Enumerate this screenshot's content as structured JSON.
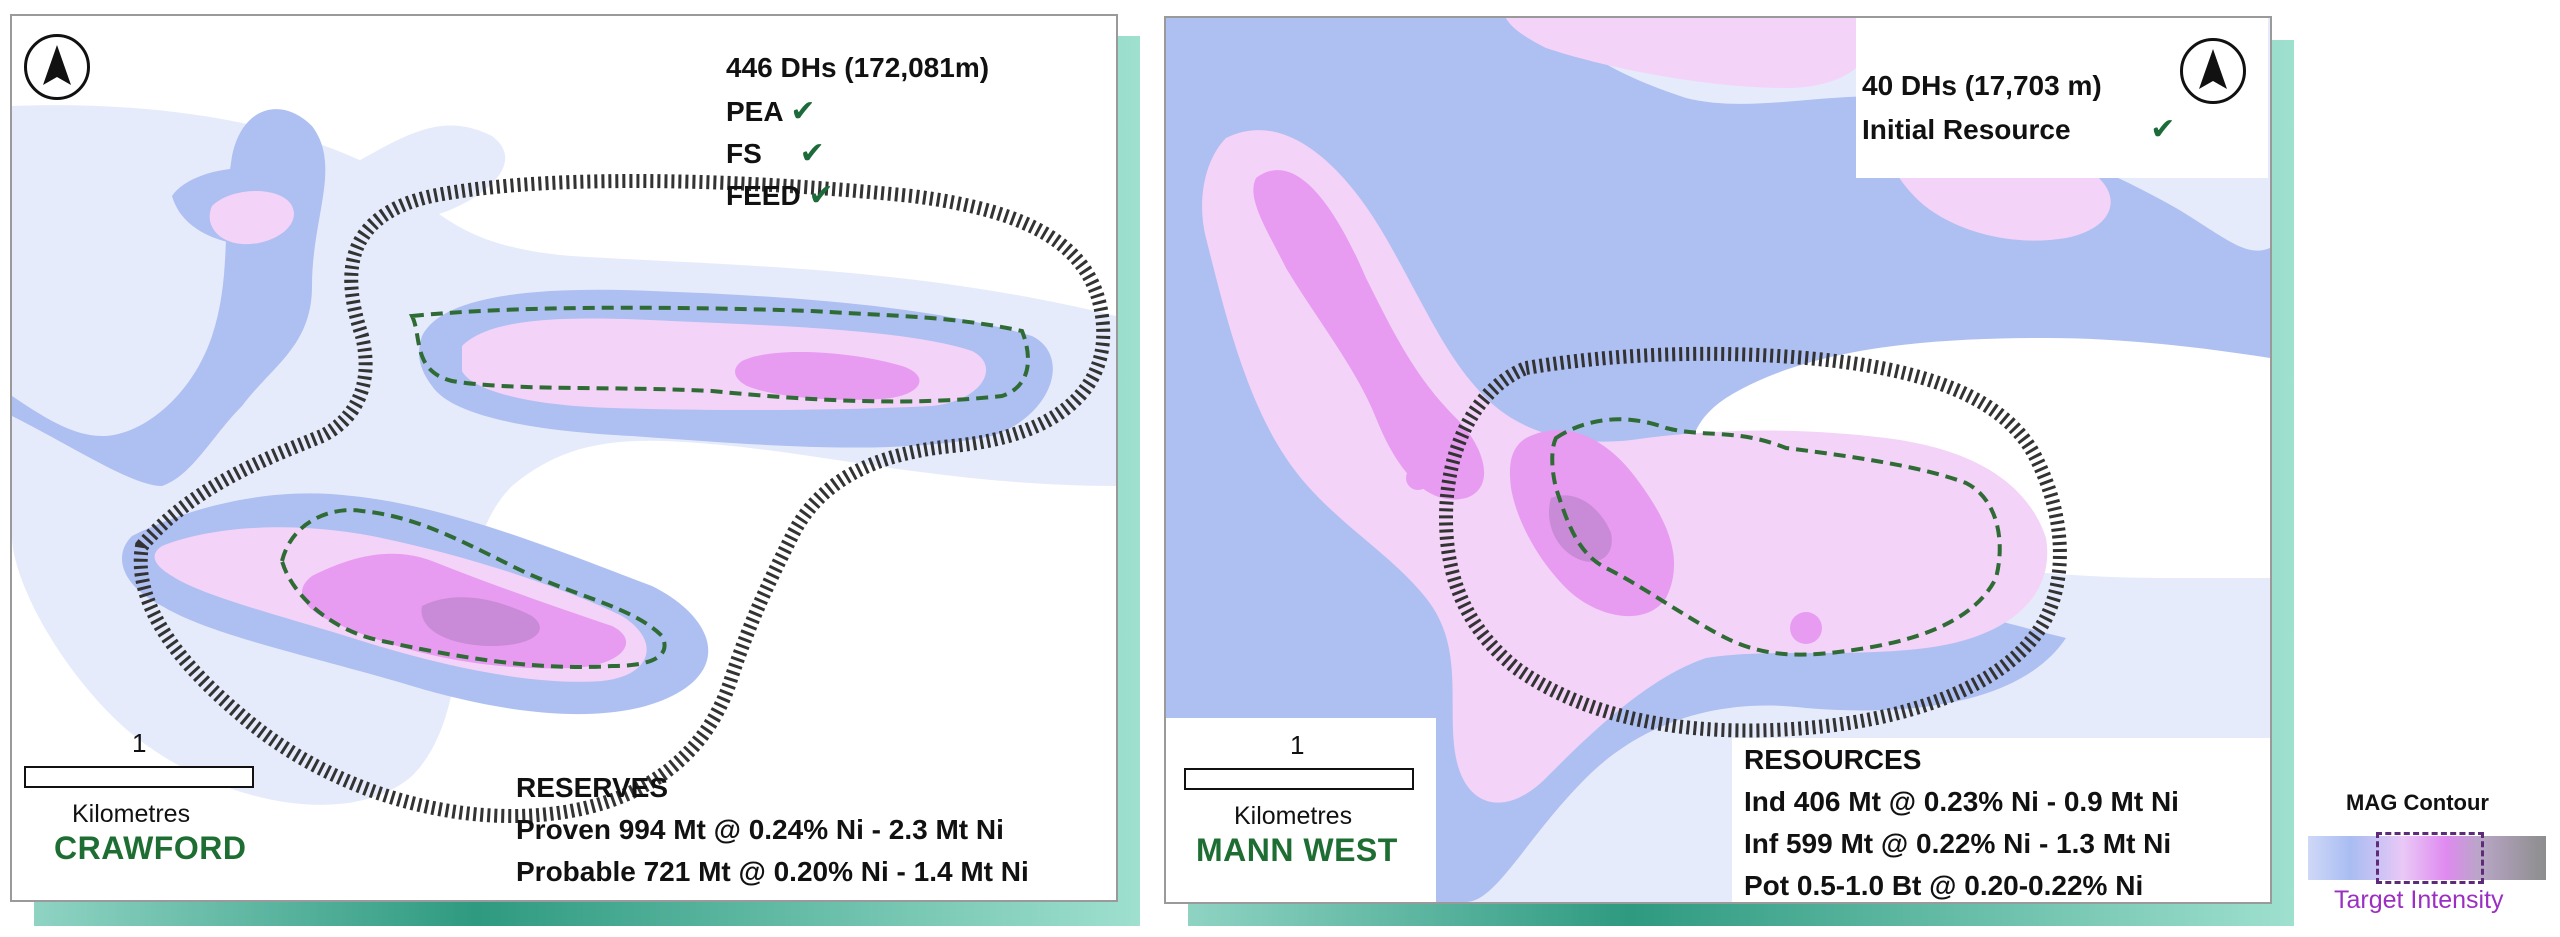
{
  "crawford": {
    "name": "CRAWFORD",
    "drill_summary": "446 DHs (172,081m)",
    "milestones": [
      {
        "label": "PEA",
        "check": "✔"
      },
      {
        "label": "FS",
        "check": "✔"
      },
      {
        "label": "FEED",
        "check": "✔"
      }
    ],
    "stats_heading": "RESERVES",
    "stats": [
      "Proven 994 Mt @ 0.24% Ni - 2.3 Mt Ni",
      "Probable 721 Mt @ 0.20% Ni - 1.4 Mt Ni"
    ],
    "scale_value": "1",
    "scale_unit": "Kilometres"
  },
  "mann_west": {
    "name": "MANN WEST",
    "drill_summary": "40 DHs (17,703 m)",
    "milestones": [
      {
        "label": "Initial Resource",
        "check": "✔"
      }
    ],
    "stats_heading": "RESOURCES",
    "stats": [
      "Ind 406 Mt @ 0.23% Ni - 0.9 Mt Ni",
      "Inf 599 Mt @ 0.22% Ni - 1.3 Mt Ni",
      "Pot 0.5-1.0 Bt @ 0.20-0.22% Ni"
    ],
    "scale_value": "1",
    "scale_unit": "Kilometres"
  },
  "legend": {
    "title": "MAG Contour",
    "subtitle": "Target Intensity"
  },
  "colors": {
    "mag_low": "#e6ebfb",
    "mag_mid": "#aebff2",
    "mag_pink": "#f3d3f7",
    "mag_magenta": "#e79cf1",
    "mag_high": "#c98ad8",
    "outline_hatched": "#333333",
    "outline_dashed": "#2f6b34",
    "area_name": "#1e6e33",
    "legend_subtitle": "#9b2fc2",
    "frame_teal": "#2e9a80"
  },
  "icons": [
    "north-arrow-icon",
    "check-icon"
  ]
}
